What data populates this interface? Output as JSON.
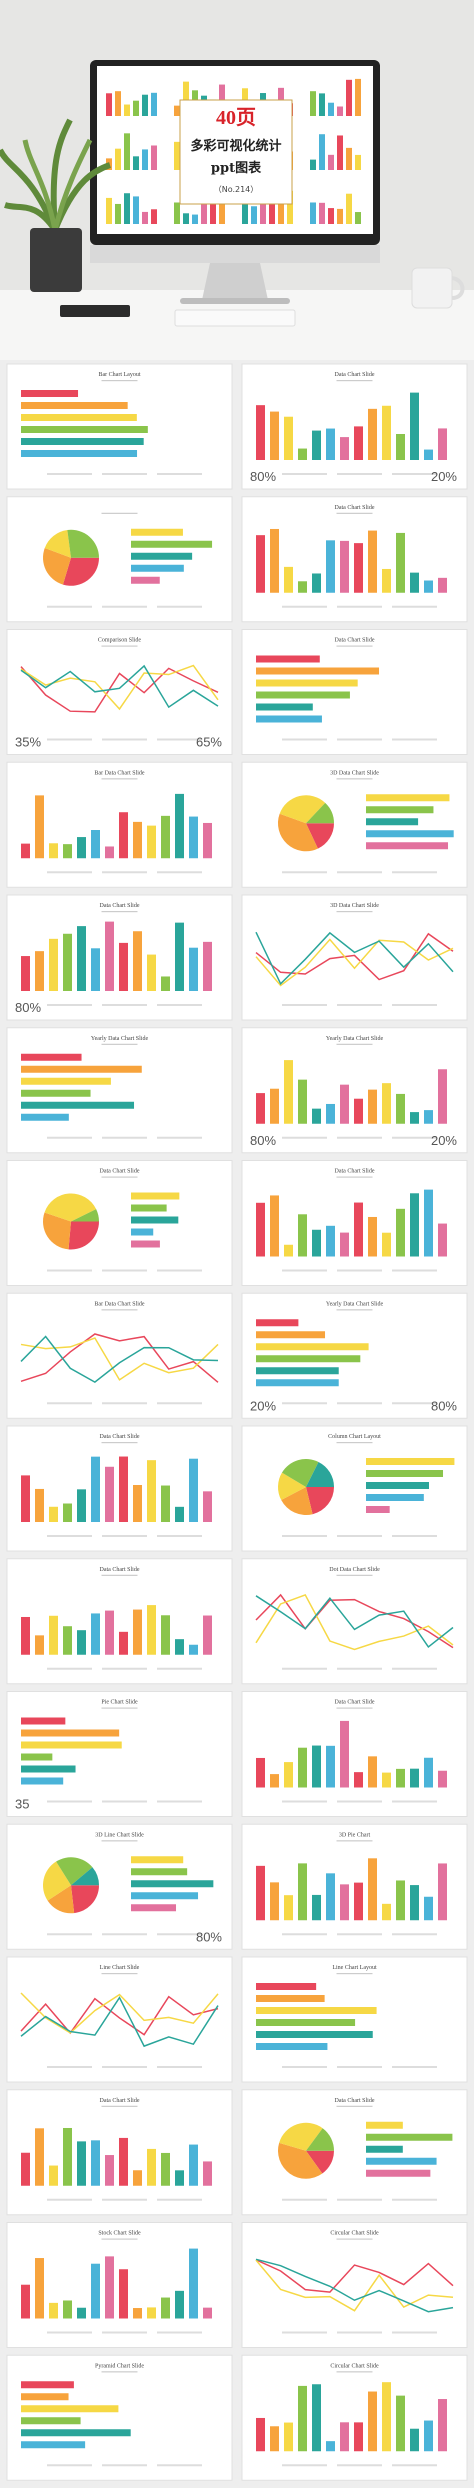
{
  "hero": {
    "count": "40页",
    "title": "多彩可视化统计",
    "subtitle": "ppt图表",
    "code": "（No.214）"
  },
  "slides": [
    {
      "title": "Bar Chart Layout"
    },
    {
      "title": "Data Chart Slide",
      "stats": [
        "80%",
        "20%"
      ]
    },
    {
      "title": null
    },
    {
      "title": "Data Chart Slide"
    },
    {
      "title": "Comparison Slide",
      "stats": [
        "35%",
        "65%"
      ]
    },
    {
      "title": "Data Chart Slide"
    },
    {
      "title": "Bar Data Chart Slide"
    },
    {
      "title": "3D Data Chart Slide"
    },
    {
      "title": "Data Chart Slide",
      "stats": [
        "80%"
      ]
    },
    {
      "title": "3D Data Chart Slide"
    },
    {
      "title": "Yearly Data Chart Slide"
    },
    {
      "title": "Yearly Data Chart Slide",
      "stats": [
        "80%",
        "20%"
      ]
    },
    {
      "title": "Data Chart Slide"
    },
    {
      "title": "Data Chart Slide"
    },
    {
      "title": "Bar Data Chart Slide"
    },
    {
      "title": "Yearly Data Chart Slide",
      "stats": [
        "20%",
        "80%"
      ]
    },
    {
      "title": "Data Chart Slide"
    },
    {
      "title": "Column Chart Layout"
    },
    {
      "title": "Data Chart Slide"
    },
    {
      "title": "Dot Data Chart Slide"
    },
    {
      "title": "Pie Chart Slide",
      "stats": [
        "35"
      ]
    },
    {
      "title": "Data Chart Slide"
    },
    {
      "title": "3D Line Chart Slide",
      "stats": [
        "80%"
      ]
    },
    {
      "title": "3D Pie Chart"
    },
    {
      "title": "Line Chart Slide"
    },
    {
      "title": "Line Chart Layout"
    },
    {
      "title": "Data Chart Slide"
    },
    {
      "title": "Data Chart Slide"
    },
    {
      "title": "Stock Chart Slide"
    },
    {
      "title": "Circular Chart Slide"
    },
    {
      "title": "Pyramid Chart Slide"
    },
    {
      "title": "Circular Chart Slide"
    }
  ]
}
